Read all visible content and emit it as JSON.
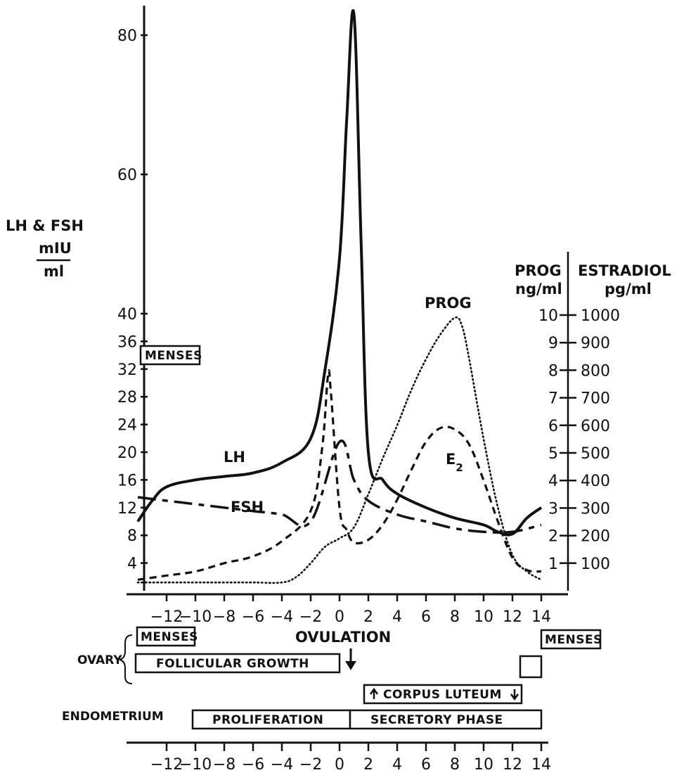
{
  "chart_data": {
    "type": "line",
    "x_ticks": [
      "-12",
      "-10",
      "-8",
      "-6",
      "-4",
      "-2",
      "0",
      "2",
      "4",
      "6",
      "8",
      "10",
      "12",
      "14"
    ],
    "xlim": [
      -14,
      14
    ],
    "left_axis": {
      "title_line1": "LH & FSH",
      "title_line2": "mIU",
      "title_line3": "ml",
      "ticks": [
        "4",
        "8",
        "12",
        "16",
        "20",
        "24",
        "28",
        "32",
        "36",
        "40",
        "60",
        "80"
      ]
    },
    "prog_axis": {
      "title_line1": "PROG",
      "title_line2": "ng/ml",
      "ticks": [
        "1",
        "2",
        "3",
        "4",
        "5",
        "6",
        "7",
        "8",
        "9",
        "10"
      ]
    },
    "estradiol_axis": {
      "title_line1": "ESTRADIOL",
      "title_line2": "pg/ml",
      "ticks": [
        "100",
        "200",
        "300",
        "400",
        "500",
        "600",
        "700",
        "800",
        "900",
        "1000"
      ]
    },
    "series": [
      {
        "name": "LH",
        "style": "solid",
        "axis": "left",
        "points": [
          [
            -14,
            10
          ],
          [
            -13,
            13
          ],
          [
            -12,
            15
          ],
          [
            -10,
            16
          ],
          [
            -8,
            16.5
          ],
          [
            -6,
            17
          ],
          [
            -4,
            18.5
          ],
          [
            -2,
            22
          ],
          [
            -1,
            32
          ],
          [
            0,
            48
          ],
          [
            0.5,
            68
          ],
          [
            1,
            83
          ],
          [
            1.5,
            50
          ],
          [
            2,
            20
          ],
          [
            3,
            16
          ],
          [
            4,
            14
          ],
          [
            6,
            12
          ],
          [
            8,
            10.5
          ],
          [
            10,
            9.5
          ],
          [
            11,
            8.5
          ],
          [
            12,
            8.2
          ],
          [
            13,
            10.5
          ],
          [
            14,
            12
          ]
        ]
      },
      {
        "name": "FSH",
        "style": "long-dash",
        "axis": "left",
        "points": [
          [
            -14,
            13.5
          ],
          [
            -12,
            13
          ],
          [
            -10,
            12.5
          ],
          [
            -8,
            12
          ],
          [
            -6,
            11.5
          ],
          [
            -4,
            11
          ],
          [
            -2,
            10
          ],
          [
            0,
            21.5
          ],
          [
            1,
            16
          ],
          [
            2,
            13
          ],
          [
            4,
            11
          ],
          [
            6,
            10
          ],
          [
            8,
            9
          ],
          [
            10,
            8.5
          ],
          [
            12,
            8.5
          ],
          [
            14,
            9.5
          ]
        ]
      },
      {
        "name": "E2",
        "style": "short-dash",
        "axis": "estradiol",
        "points": [
          [
            -14,
            40
          ],
          [
            -12,
            55
          ],
          [
            -10,
            70
          ],
          [
            -8,
            100
          ],
          [
            -6,
            125
          ],
          [
            -4,
            180
          ],
          [
            -2,
            290
          ],
          [
            -1.2,
            520
          ],
          [
            -0.8,
            780
          ],
          [
            -0.6,
            720
          ],
          [
            0,
            300
          ],
          [
            0.5,
            220
          ],
          [
            1,
            175
          ],
          [
            2,
            185
          ],
          [
            3,
            240
          ],
          [
            4,
            330
          ],
          [
            5,
            440
          ],
          [
            6,
            540
          ],
          [
            7,
            590
          ],
          [
            8,
            585
          ],
          [
            9,
            530
          ],
          [
            10,
            400
          ],
          [
            11,
            250
          ],
          [
            12,
            120
          ],
          [
            13,
            75
          ],
          [
            14,
            70
          ]
        ]
      },
      {
        "name": "PROG",
        "style": "dotted",
        "axis": "prog",
        "points": [
          [
            -14,
            0.3
          ],
          [
            -12,
            0.3
          ],
          [
            -10,
            0.3
          ],
          [
            -8,
            0.3
          ],
          [
            -6,
            0.3
          ],
          [
            -4,
            0.3
          ],
          [
            -3,
            0.5
          ],
          [
            -2,
            1.0
          ],
          [
            -1,
            1.6
          ],
          [
            0,
            1.9
          ],
          [
            1,
            2.3
          ],
          [
            2,
            3.5
          ],
          [
            3,
            4.8
          ],
          [
            4,
            6.0
          ],
          [
            5,
            7.3
          ],
          [
            6,
            8.4
          ],
          [
            7,
            9.3
          ],
          [
            8,
            9.9
          ],
          [
            8.5,
            9.6
          ],
          [
            9,
            8.4
          ],
          [
            10,
            5.5
          ],
          [
            11,
            3.0
          ],
          [
            12,
            1.3
          ],
          [
            13,
            0.7
          ],
          [
            14,
            0.4
          ]
        ]
      }
    ],
    "annotations": {
      "lh": "LH",
      "fsh": "FSH",
      "prog": "PROG",
      "e2": "E",
      "e2_sub": "2",
      "menses_top": "MENSES"
    }
  },
  "phases": {
    "menses_left": "MENSES",
    "menses_right": "MENSES",
    "ovulation": "OVULATION",
    "ovary_label": "OVARY",
    "follicular": "FOLLICULAR GROWTH",
    "corpus_luteum": "CORPUS LUTEUM",
    "endometrium_label": "ENDOMETRIUM",
    "proliferation": "PROLIFERATION",
    "secretory": "SECRETORY PHASE"
  },
  "bottom_axis": {
    "ticks": [
      "-12",
      "-10",
      "-8",
      "-6",
      "-4",
      "-2",
      "0",
      "2",
      "4",
      "6",
      "8",
      "10",
      "12",
      "14"
    ]
  }
}
